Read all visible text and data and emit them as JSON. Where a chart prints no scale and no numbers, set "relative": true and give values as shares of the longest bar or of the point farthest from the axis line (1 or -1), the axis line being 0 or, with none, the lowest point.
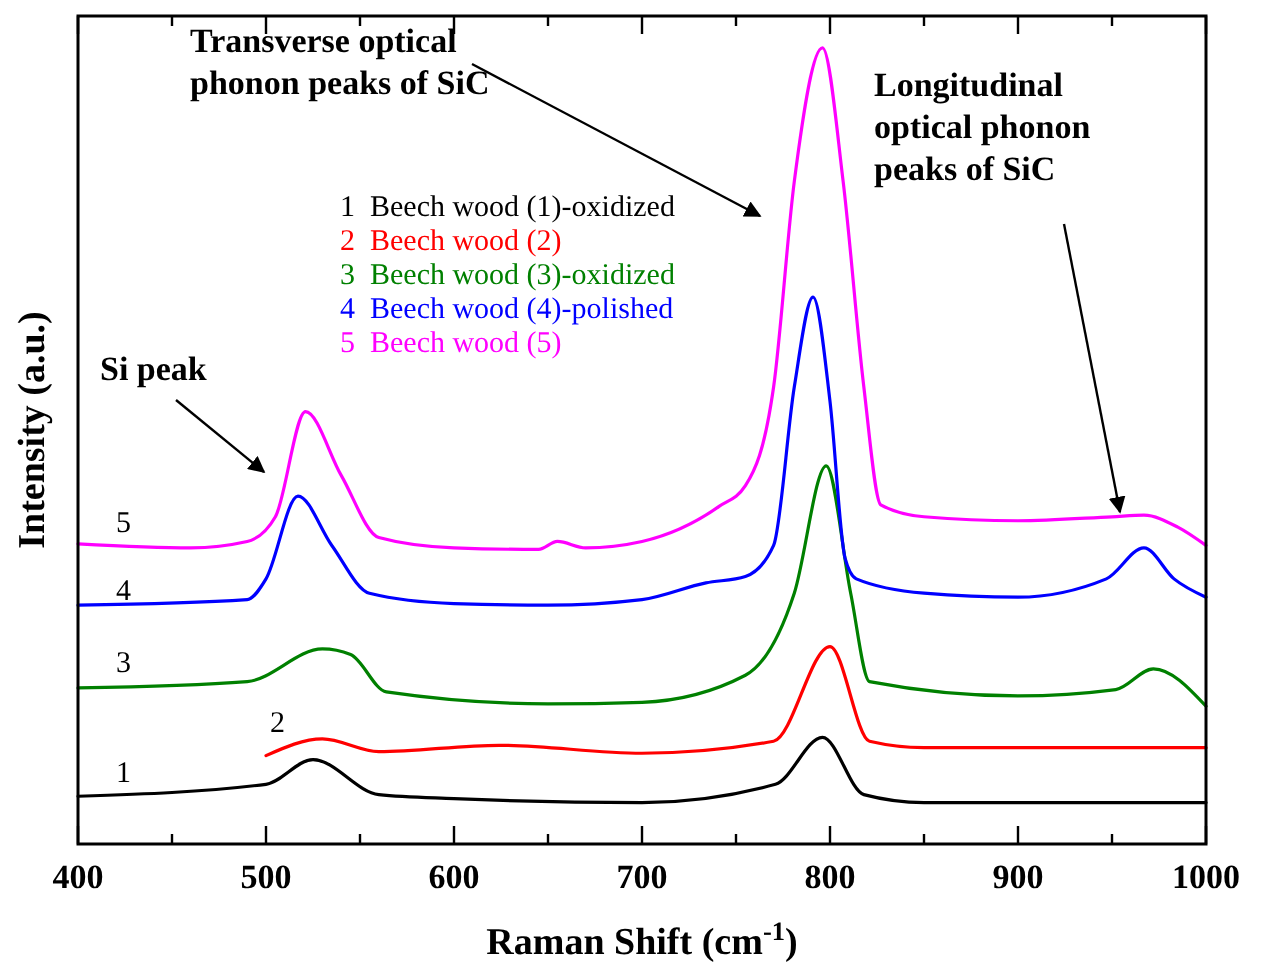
{
  "chart_data": {
    "type": "line",
    "xlabel": "Raman Shift (cm$^{-1}$)",
    "ylabel": "Intensity (a.u.)",
    "relative": true,
    "xlim": [
      400,
      1000
    ],
    "xticks": [
      400,
      {
        "value": 450,
        "label": null
      },
      500,
      {
        "value": 550,
        "label": null
      },
      600,
      {
        "value": 650,
        "label": null
      },
      700,
      {
        "value": 750,
        "label": null
      },
      800,
      {
        "value": 850,
        "label": null
      },
      900,
      {
        "value": 950,
        "label": null
      },
      1000
    ],
    "legend": "top",
    "grid": false,
    "marker": "none",
    "line_style": "solid",
    "series": [
      {
        "name": "1  Beech wood (1)-oxidized",
        "color": "#000000",
        "x": [
          400,
          500,
          525,
          560,
          600,
          700,
          771,
          796,
          818,
          850,
          1000
        ],
        "values": [
          0.06,
          0.075,
          0.106,
          0.062,
          0.057,
          0.052,
          0.075,
          0.134,
          0.062,
          0.052,
          0.052
        ]
      },
      {
        "name": "2  Beech wood (2)",
        "color": "#ff0000",
        "x": [
          500,
          530,
          560,
          624,
          700,
          770,
          800,
          821,
          850,
          1000
        ],
        "values": [
          0.111,
          0.132,
          0.116,
          0.124,
          0.114,
          0.129,
          0.248,
          0.129,
          0.121,
          0.121
        ]
      },
      {
        "name": "3  Beech wood (3)-oxidized",
        "color": "#008000",
        "x": [
          400,
          490,
          530,
          545,
          564,
          650,
          700,
          755,
          781,
          798,
          811,
          821,
          900,
          952,
          972,
          1000
        ],
        "values": [
          0.196,
          0.204,
          0.245,
          0.238,
          0.191,
          0.176,
          0.178,
          0.212,
          0.315,
          0.475,
          0.315,
          0.204,
          0.186,
          0.194,
          0.22,
          0.173
        ]
      },
      {
        "name": "4  Beech wood (4)-polished",
        "color": "#0000ff",
        "x": [
          400,
          490,
          500,
          517,
          535,
          555,
          600,
          650,
          700,
          734,
          755,
          770,
          781,
          791,
          800,
          808,
          814,
          850,
          900,
          947,
          967,
          983,
          1000
        ],
        "values": [
          0.3,
          0.307,
          0.333,
          0.437,
          0.375,
          0.315,
          0.302,
          0.3,
          0.307,
          0.328,
          0.336,
          0.375,
          0.574,
          0.687,
          0.556,
          0.359,
          0.333,
          0.315,
          0.31,
          0.333,
          0.372,
          0.333,
          0.31
        ]
      },
      {
        "name": "5  Beech wood (5)",
        "color": "#ff00ff",
        "x": [
          400,
          460,
          490,
          505,
          521,
          540,
          560,
          600,
          645,
          655,
          670,
          700,
          741,
          755,
          770,
          781,
          796,
          807,
          818,
          827,
          850,
          900,
          950,
          967,
          985,
          1000
        ],
        "values": [
          0.377,
          0.372,
          0.38,
          0.411,
          0.543,
          0.463,
          0.385,
          0.372,
          0.37,
          0.38,
          0.372,
          0.38,
          0.424,
          0.45,
          0.574,
          0.832,
          1.0,
          0.832,
          0.574,
          0.426,
          0.411,
          0.406,
          0.411,
          0.413,
          0.398,
          0.375
        ]
      }
    ],
    "annotations": [
      "Si peak",
      "Transverse optical phonon peaks of SiC",
      "Longitudinal optical phonon peaks of SiC",
      "1",
      "2",
      "3",
      "4",
      "5"
    ]
  }
}
